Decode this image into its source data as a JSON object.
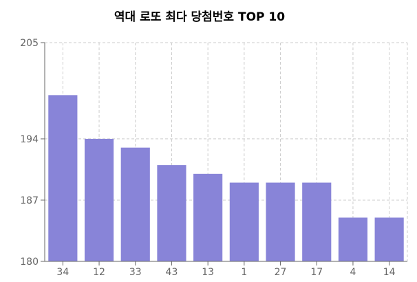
{
  "chart_data": {
    "type": "bar",
    "title": "역대 로또 최다 당첨번호 TOP 10",
    "categories": [
      "34",
      "12",
      "33",
      "43",
      "13",
      "1",
      "27",
      "17",
      "4",
      "14"
    ],
    "values": [
      199,
      194,
      193,
      191,
      190,
      189,
      189,
      189,
      185,
      185
    ],
    "yticks": [
      180,
      187,
      194,
      205
    ],
    "ylim": [
      180,
      205
    ],
    "xlabel": "",
    "ylabel": "",
    "grid": true,
    "bar_color": "#8884d8",
    "grid_color": "#cccccc",
    "axis_color": "#666666"
  }
}
